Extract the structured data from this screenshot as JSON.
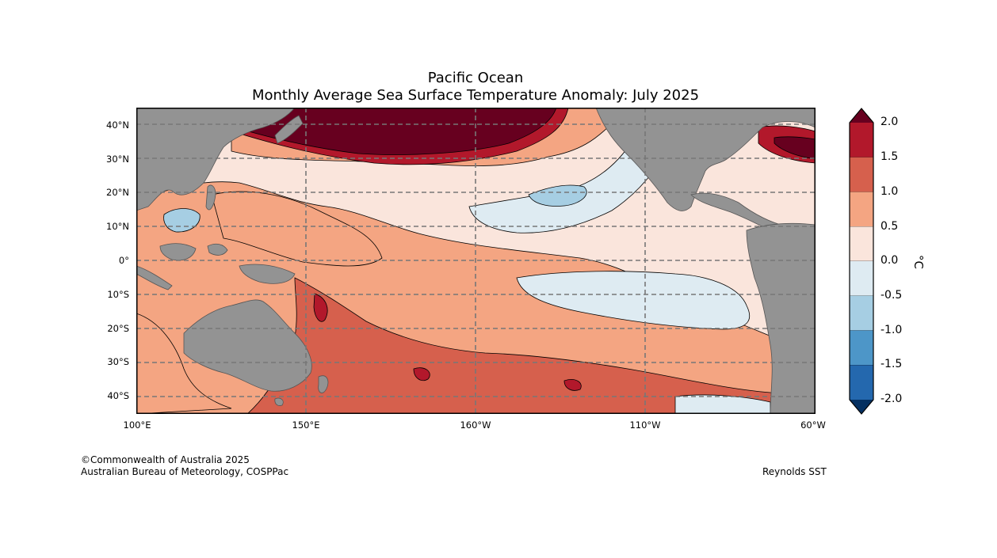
{
  "title": {
    "line1": "Pacific Ocean",
    "line2": "Monthly Average Sea Surface Temperature Anomaly: July 2025"
  },
  "map": {
    "lat_range": [
      -45,
      45
    ],
    "lon_range_east": [
      100,
      300
    ],
    "lat_labels": [
      "40°N",
      "30°N",
      "20°N",
      "10°N",
      "0°",
      "10°S",
      "20°S",
      "30°S",
      "40°S"
    ],
    "lon_labels": [
      "100°E",
      "150°E",
      "160°W",
      "110°W",
      "60°W"
    ],
    "colors": {
      "land": "#939393",
      "gridline": "#777777"
    }
  },
  "colorbar": {
    "unit": "°C",
    "tick_labels": [
      "2.0",
      "1.5",
      "1.0",
      "0.5",
      "0.0",
      "-0.5",
      "-1.0",
      "-1.5",
      "-2.0"
    ],
    "bands": [
      {
        "range": "> 2.0",
        "color": "#67001f"
      },
      {
        "range": "1.5 to 2.0",
        "color": "#b2182b"
      },
      {
        "range": "1.0 to 1.5",
        "color": "#d6604d"
      },
      {
        "range": "0.5 to 1.0",
        "color": "#f4a582"
      },
      {
        "range": "0.0 to 0.5",
        "color": "#fae5dc"
      },
      {
        "range": "-0.5 to 0.0",
        "color": "#deebf2"
      },
      {
        "range": "-1.0 to -0.5",
        "color": "#a6cee3"
      },
      {
        "range": "-1.5 to -1.0",
        "color": "#4d96c8"
      },
      {
        "range": "-2.0 to -1.5",
        "color": "#2468ae"
      },
      {
        "range": "< -2.0",
        "color": "#053061"
      }
    ]
  },
  "footer": {
    "copyright": "©Commonwealth of Australia 2025",
    "agency": "Australian Bureau of Meteorology, COSPPac",
    "source": "Reynolds SST"
  }
}
